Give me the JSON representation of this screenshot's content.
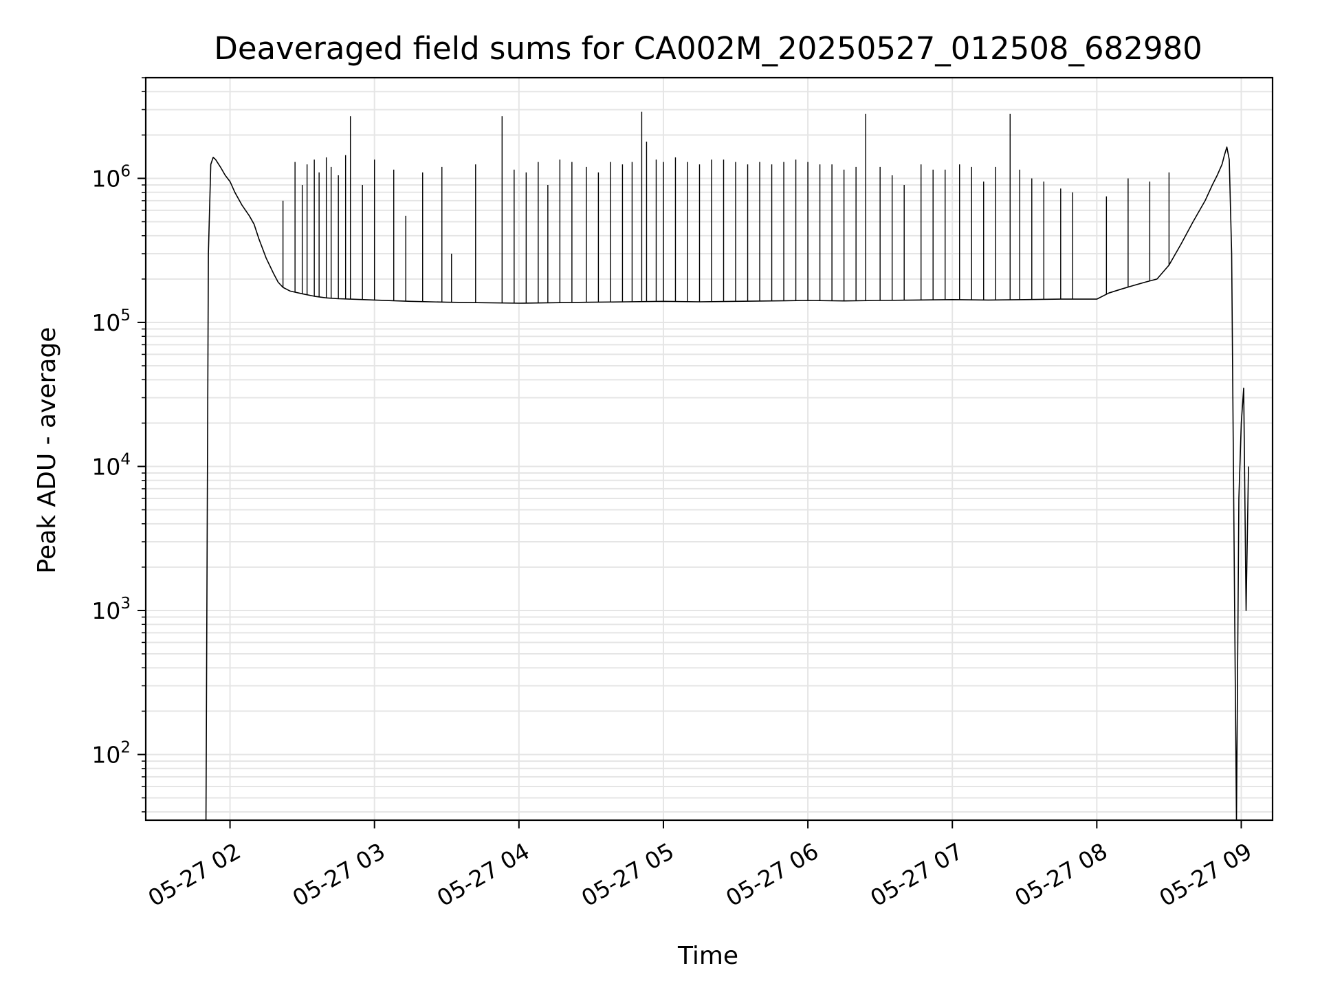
{
  "chart_data": {
    "type": "line",
    "title": "Deaveraged field sums for CA002M_20250527_012508_682980",
    "xlabel": "Time",
    "ylabel": "Peak ADU - average",
    "yscale": "log",
    "ylim": [
      35,
      5000000
    ],
    "xlim": [
      "05-27 01:25",
      "05-27 09:13"
    ],
    "grid": true,
    "line_color": "#000000",
    "grid_color": "#e5e5e5",
    "x_ticks": [
      "05-27 02",
      "05-27 03",
      "05-27 04",
      "05-27 05",
      "05-27 06",
      "05-27 07",
      "05-27 08",
      "05-27 09"
    ],
    "y_ticks": [
      {
        "base": "10",
        "exp": "2"
      },
      {
        "base": "10",
        "exp": "3"
      },
      {
        "base": "10",
        "exp": "4"
      },
      {
        "base": "10",
        "exp": "5"
      },
      {
        "base": "10",
        "exp": "6"
      }
    ],
    "series": [
      {
        "x": [
          "01:50",
          "01:51",
          "01:52",
          "01:53",
          "01:54",
          "01:56",
          "01:58",
          "02:00",
          "02:02",
          "02:05",
          "02:08",
          "02:10",
          "02:12",
          "02:15",
          "02:18",
          "02:20",
          "02:22",
          "02:25",
          "02:30",
          "02:35",
          "02:40",
          "02:45",
          "02:50",
          "03:00",
          "03:15",
          "03:30",
          "03:45",
          "04:00",
          "04:15",
          "04:30",
          "04:45",
          "05:00",
          "05:15",
          "05:30",
          "05:45",
          "06:00",
          "06:15",
          "06:30",
          "06:45",
          "07:00",
          "07:15",
          "07:30",
          "07:45",
          "08:00",
          "08:05",
          "08:10",
          "08:15",
          "08:20",
          "08:25",
          "08:30",
          "08:35",
          "08:40",
          "08:45",
          "08:48",
          "08:50",
          "08:52",
          "08:53",
          "08:54",
          "08:55",
          "08:56",
          "08:57",
          "08:58",
          "08:59",
          "09:00",
          "09:01",
          "09:02",
          "09:03"
        ],
        "y": [
          35,
          300000,
          1250000,
          1400000,
          1350000,
          1200000,
          1050000,
          950000,
          800000,
          650000,
          550000,
          480000,
          380000,
          280000,
          220000,
          190000,
          175000,
          165000,
          158000,
          152000,
          148000,
          146000,
          145000,
          143000,
          140000,
          138000,
          137000,
          136000,
          137000,
          138000,
          139000,
          140000,
          139000,
          140000,
          141000,
          142000,
          141000,
          142000,
          143000,
          144000,
          143000,
          144000,
          145000,
          145000,
          160000,
          170000,
          180000,
          190000,
          200000,
          250000,
          350000,
          500000,
          700000,
          900000,
          1050000,
          1250000,
          1450000,
          1650000,
          1350000,
          300000,
          3000,
          35,
          6000,
          20000,
          35000,
          1000,
          10000
        ]
      }
    ],
    "spikes": [
      [
        "02:22",
        700000
      ],
      [
        "02:27",
        1300000
      ],
      [
        "02:30",
        900000
      ],
      [
        "02:32",
        1250000
      ],
      [
        "02:35",
        1350000
      ],
      [
        "02:37",
        1100000
      ],
      [
        "02:40",
        1400000
      ],
      [
        "02:42",
        1200000
      ],
      [
        "02:45",
        1050000
      ],
      [
        "02:48",
        1450000
      ],
      [
        "02:50",
        2700000
      ],
      [
        "02:55",
        900000
      ],
      [
        "03:00",
        1350000
      ],
      [
        "03:08",
        1150000
      ],
      [
        "03:13",
        550000
      ],
      [
        "03:20",
        1100000
      ],
      [
        "03:28",
        1200000
      ],
      [
        "03:32",
        300000
      ],
      [
        "03:42",
        1250000
      ],
      [
        "03:53",
        2700000
      ],
      [
        "03:58",
        1150000
      ],
      [
        "04:03",
        1100000
      ],
      [
        "04:08",
        1300000
      ],
      [
        "04:12",
        900000
      ],
      [
        "04:17",
        1350000
      ],
      [
        "04:22",
        1300000
      ],
      [
        "04:28",
        1200000
      ],
      [
        "04:33",
        1100000
      ],
      [
        "04:38",
        1300000
      ],
      [
        "04:43",
        1250000
      ],
      [
        "04:47",
        1300000
      ],
      [
        "04:51",
        2900000
      ],
      [
        "04:53",
        1800000
      ],
      [
        "04:57",
        1350000
      ],
      [
        "05:00",
        1300000
      ],
      [
        "05:05",
        1400000
      ],
      [
        "05:10",
        1300000
      ],
      [
        "05:15",
        1250000
      ],
      [
        "05:20",
        1350000
      ],
      [
        "05:25",
        1350000
      ],
      [
        "05:30",
        1300000
      ],
      [
        "05:35",
        1250000
      ],
      [
        "05:40",
        1300000
      ],
      [
        "05:45",
        1250000
      ],
      [
        "05:50",
        1300000
      ],
      [
        "05:55",
        1350000
      ],
      [
        "06:00",
        1300000
      ],
      [
        "06:05",
        1250000
      ],
      [
        "06:10",
        1250000
      ],
      [
        "06:15",
        1150000
      ],
      [
        "06:20",
        1200000
      ],
      [
        "06:24",
        2800000
      ],
      [
        "06:30",
        1200000
      ],
      [
        "06:35",
        1050000
      ],
      [
        "06:40",
        900000
      ],
      [
        "06:47",
        1250000
      ],
      [
        "06:52",
        1150000
      ],
      [
        "06:57",
        1150000
      ],
      [
        "07:03",
        1250000
      ],
      [
        "07:08",
        1200000
      ],
      [
        "07:13",
        950000
      ],
      [
        "07:18",
        1200000
      ],
      [
        "07:24",
        2800000
      ],
      [
        "07:28",
        1150000
      ],
      [
        "07:33",
        1000000
      ],
      [
        "07:38",
        950000
      ],
      [
        "07:45",
        850000
      ],
      [
        "07:50",
        800000
      ],
      [
        "08:04",
        750000
      ],
      [
        "08:13",
        1000000
      ],
      [
        "08:22",
        950000
      ],
      [
        "08:30",
        1100000
      ]
    ]
  }
}
